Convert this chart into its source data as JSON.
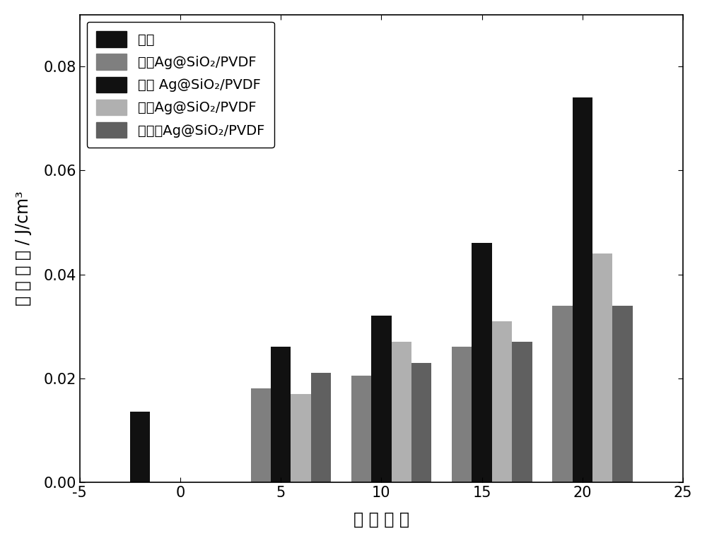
{
  "title": "",
  "xlabel": "质 量 分 数",
  "ylabel": "储 能 密 度 / J/cm³",
  "xlim": [
    -5,
    25
  ],
  "ylim": [
    0,
    0.09
  ],
  "yticks": [
    0,
    0.02,
    0.04,
    0.06,
    0.08
  ],
  "xticks": [
    -5,
    0,
    5,
    10,
    15,
    20,
    25
  ],
  "series": [
    {
      "label": "纯膜",
      "color": "#111111",
      "x_positions": [
        -2
      ],
      "values": [
        0.0135
      ]
    },
    {
      "label": "棒状Ag@SiO₂/PVDF",
      "color": "#7f7f7f",
      "x_positions": [
        4.0,
        9.0,
        14.0,
        19.0
      ],
      "values": [
        0.018,
        0.0205,
        0.026,
        0.034
      ]
    },
    {
      "label": "线状 Ag@SiO₂/PVDF",
      "color": "#111111",
      "x_positions": [
        5.0,
        10.0,
        15.0,
        20.0
      ],
      "values": [
        0.026,
        0.032,
        0.046,
        0.074
      ]
    },
    {
      "label": "球状Ag@SiO₂/PVDF",
      "color": "#b0b0b0",
      "x_positions": [
        6.0,
        11.0,
        16.0,
        21.0
      ],
      "values": [
        0.017,
        0.027,
        0.031,
        0.044
      ]
    },
    {
      "label": "立方状Ag@SiO₂/PVDF",
      "color": "#606060",
      "x_positions": [
        7.0,
        12.0,
        17.0,
        22.0
      ],
      "values": [
        0.021,
        0.023,
        0.027,
        0.034
      ]
    }
  ],
  "bar_width": 1.0,
  "background_color": "#ffffff",
  "legend_fontsize": 14,
  "axis_fontsize": 17,
  "tick_fontsize": 15
}
